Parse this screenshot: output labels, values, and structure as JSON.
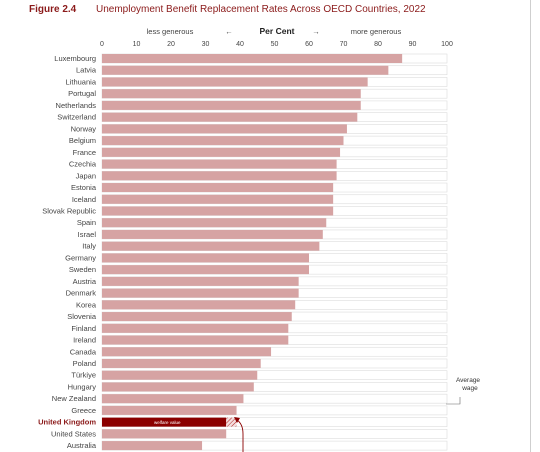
{
  "figure": {
    "label": "Figure 2.4",
    "title": "Unemployment Benefit Replacement Rates Across OECD Countries, 2022"
  },
  "chart_data": {
    "type": "bar",
    "orientation": "horizontal",
    "xlabel": "Per Cent",
    "left_label": "less generous",
    "right_label": "more generous",
    "left_arrow": "←",
    "right_arrow": "→",
    "xlim": [
      0,
      100
    ],
    "xticks": [
      0,
      10,
      20,
      30,
      40,
      50,
      60,
      70,
      80,
      90,
      100
    ],
    "grid": false,
    "colors": {
      "bar": "#d6a3a3",
      "highlight": "#8b0000",
      "highlight_text": "#b22222"
    },
    "categories": [
      "Luxembourg",
      "Latvia",
      "Lithuania",
      "Portugal",
      "Netherlands",
      "Switzerland",
      "Norway",
      "Belgium",
      "France",
      "Czechia",
      "Japan",
      "Estonia",
      "Iceland",
      "Slovak Republic",
      "Spain",
      "Israel",
      "Italy",
      "Germany",
      "Sweden",
      "Austria",
      "Denmark",
      "Korea",
      "Slovenia",
      "Finland",
      "Ireland",
      "Canada",
      "Poland",
      "Türkiye",
      "Hungary",
      "New Zealand",
      "Greece",
      "United Kingdom",
      "United States",
      "Australia"
    ],
    "values": [
      87,
      83,
      77,
      75,
      75,
      74,
      71,
      70,
      69,
      68,
      68,
      67,
      67,
      67,
      65,
      64,
      63,
      60,
      60,
      57,
      57,
      56,
      55,
      54,
      54,
      49,
      46,
      45,
      44,
      41,
      39,
      36,
      36,
      29
    ],
    "highlight_category": "United Kingdom",
    "highlight_extension": 39,
    "in_bar_annotation": "welfare value",
    "side_annotation": [
      "Average",
      "wage"
    ]
  }
}
